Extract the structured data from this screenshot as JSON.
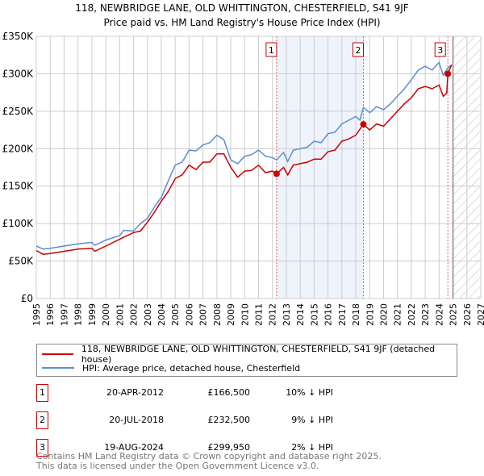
{
  "title": "118, NEWBRIDGE LANE, OLD WHITTINGTON, CHESTERFIELD, S41 9JF",
  "subtitle": "Price paid vs. HM Land Registry's House Price Index (HPI)",
  "chart_data": {
    "type": "line",
    "xlim": [
      1995,
      2027
    ],
    "ylim": [
      0,
      350000
    ],
    "y_ticks": [
      0,
      50000,
      100000,
      150000,
      200000,
      250000,
      300000,
      350000
    ],
    "y_tick_labels": [
      "£0",
      "£50K",
      "£100K",
      "£150K",
      "£200K",
      "£250K",
      "£300K",
      "£350K"
    ],
    "x_ticks": [
      "1995",
      "1996",
      "1997",
      "1998",
      "1999",
      "2000",
      "2001",
      "2002",
      "2003",
      "2004",
      "2005",
      "2006",
      "2007",
      "2008",
      "2009",
      "2010",
      "2011",
      "2012",
      "2013",
      "2014",
      "2015",
      "2016",
      "2017",
      "2018",
      "2019",
      "2020",
      "2021",
      "2022",
      "2023",
      "2024",
      "2025",
      "2026",
      "2027"
    ],
    "grid": true,
    "shaded_range": [
      2012.3,
      2018.55
    ],
    "forecast_hatch_from": 2025.0,
    "series": [
      {
        "name": "118, NEWBRIDGE LANE, OLD WHITTINGTON, CHESTERFIELD, S41 9JF (detached house)",
        "color": "#cc0000",
        "x": [
          1995,
          1995.5,
          1996,
          1997,
          1998,
          1999,
          1999.2,
          2000,
          2001,
          2001.3,
          2002,
          2002.5,
          2003,
          2003.5,
          2004,
          2004.5,
          2005,
          2005.5,
          2006,
          2006.5,
          2007,
          2007.5,
          2008,
          2008.5,
          2009,
          2009.5,
          2010,
          2010.5,
          2011,
          2011.5,
          2012,
          2012.3,
          2012.8,
          2013.1,
          2013.5,
          2014,
          2014.5,
          2015,
          2015.5,
          2016,
          2016.5,
          2017,
          2017.5,
          2018,
          2018.55,
          2019,
          2019.5,
          2020,
          2020.5,
          2021,
          2021.5,
          2022,
          2022.5,
          2023,
          2023.5,
          2024,
          2024.3,
          2024.55,
          2024.63,
          2024.9
        ],
        "y": [
          64000,
          59000,
          60000,
          63000,
          66000,
          67000,
          63000,
          70000,
          79000,
          82000,
          88000,
          90000,
          102000,
          115000,
          130000,
          143000,
          160000,
          165000,
          178000,
          172000,
          182000,
          182000,
          193000,
          193000,
          175000,
          162000,
          170000,
          171000,
          178000,
          168000,
          170000,
          166500,
          175000,
          165000,
          178000,
          180000,
          182000,
          186000,
          186000,
          196000,
          198000,
          210000,
          213000,
          218000,
          232500,
          225000,
          233000,
          230000,
          240000,
          250000,
          260000,
          268000,
          280000,
          283000,
          280000,
          285000,
          270000,
          274000,
          299950,
          312000
        ]
      },
      {
        "name": "HPI: Average price, detached house, Chesterfield",
        "color": "#5b8fd0",
        "x": [
          1995,
          1995.5,
          1996,
          1997,
          1998,
          1999,
          1999.2,
          2000,
          2001,
          2001.3,
          2002,
          2002.5,
          2003,
          2003.5,
          2004,
          2004.5,
          2005,
          2005.5,
          2006,
          2006.5,
          2007,
          2007.5,
          2008,
          2008.5,
          2009,
          2009.5,
          2010,
          2010.5,
          2011,
          2011.5,
          2012,
          2012.3,
          2012.8,
          2013.1,
          2013.5,
          2014,
          2014.5,
          2015,
          2015.5,
          2016,
          2016.5,
          2017,
          2017.5,
          2018,
          2018.3,
          2018.55,
          2019,
          2019.5,
          2020,
          2020.5,
          2021,
          2021.5,
          2022,
          2022.5,
          2023,
          2023.5,
          2024,
          2024.3,
          2024.6,
          2024.9
        ],
        "y": [
          70000,
          66000,
          67000,
          70000,
          73000,
          75000,
          71000,
          78000,
          84000,
          91000,
          90000,
          100000,
          107000,
          122000,
          135000,
          157000,
          178000,
          182000,
          198000,
          197000,
          205000,
          208000,
          218000,
          212000,
          185000,
          180000,
          190000,
          192000,
          198000,
          190000,
          188000,
          185000,
          195000,
          183000,
          198000,
          200000,
          202000,
          210000,
          208000,
          220000,
          222000,
          233000,
          238000,
          243000,
          238000,
          255000,
          248000,
          256000,
          252000,
          260000,
          270000,
          280000,
          292000,
          305000,
          310000,
          305000,
          315000,
          298000,
          307000,
          312000
        ]
      }
    ],
    "sales": [
      {
        "num": "1",
        "x": 2012.3,
        "y": 166500,
        "date": "20-APR-2012",
        "price": "£166,500",
        "hpi": "10% ↓ HPI"
      },
      {
        "num": "2",
        "x": 2018.55,
        "y": 232500,
        "date": "20-JUL-2018",
        "price": "£232,500",
        "hpi": "9% ↓ HPI"
      },
      {
        "num": "3",
        "x": 2024.63,
        "y": 299950,
        "date": "19-AUG-2024",
        "price": "£299,950",
        "hpi": "2% ↓ HPI"
      }
    ]
  },
  "legend": {
    "red": "118, NEWBRIDGE LANE, OLD WHITTINGTON, CHESTERFIELD, S41 9JF (detached house)",
    "blue": "HPI: Average price, detached house, Chesterfield"
  },
  "footer": {
    "line1": "Contains HM Land Registry data © Crown copyright and database right 2025.",
    "line2": "This data is licensed under the Open Government Licence v3.0."
  }
}
